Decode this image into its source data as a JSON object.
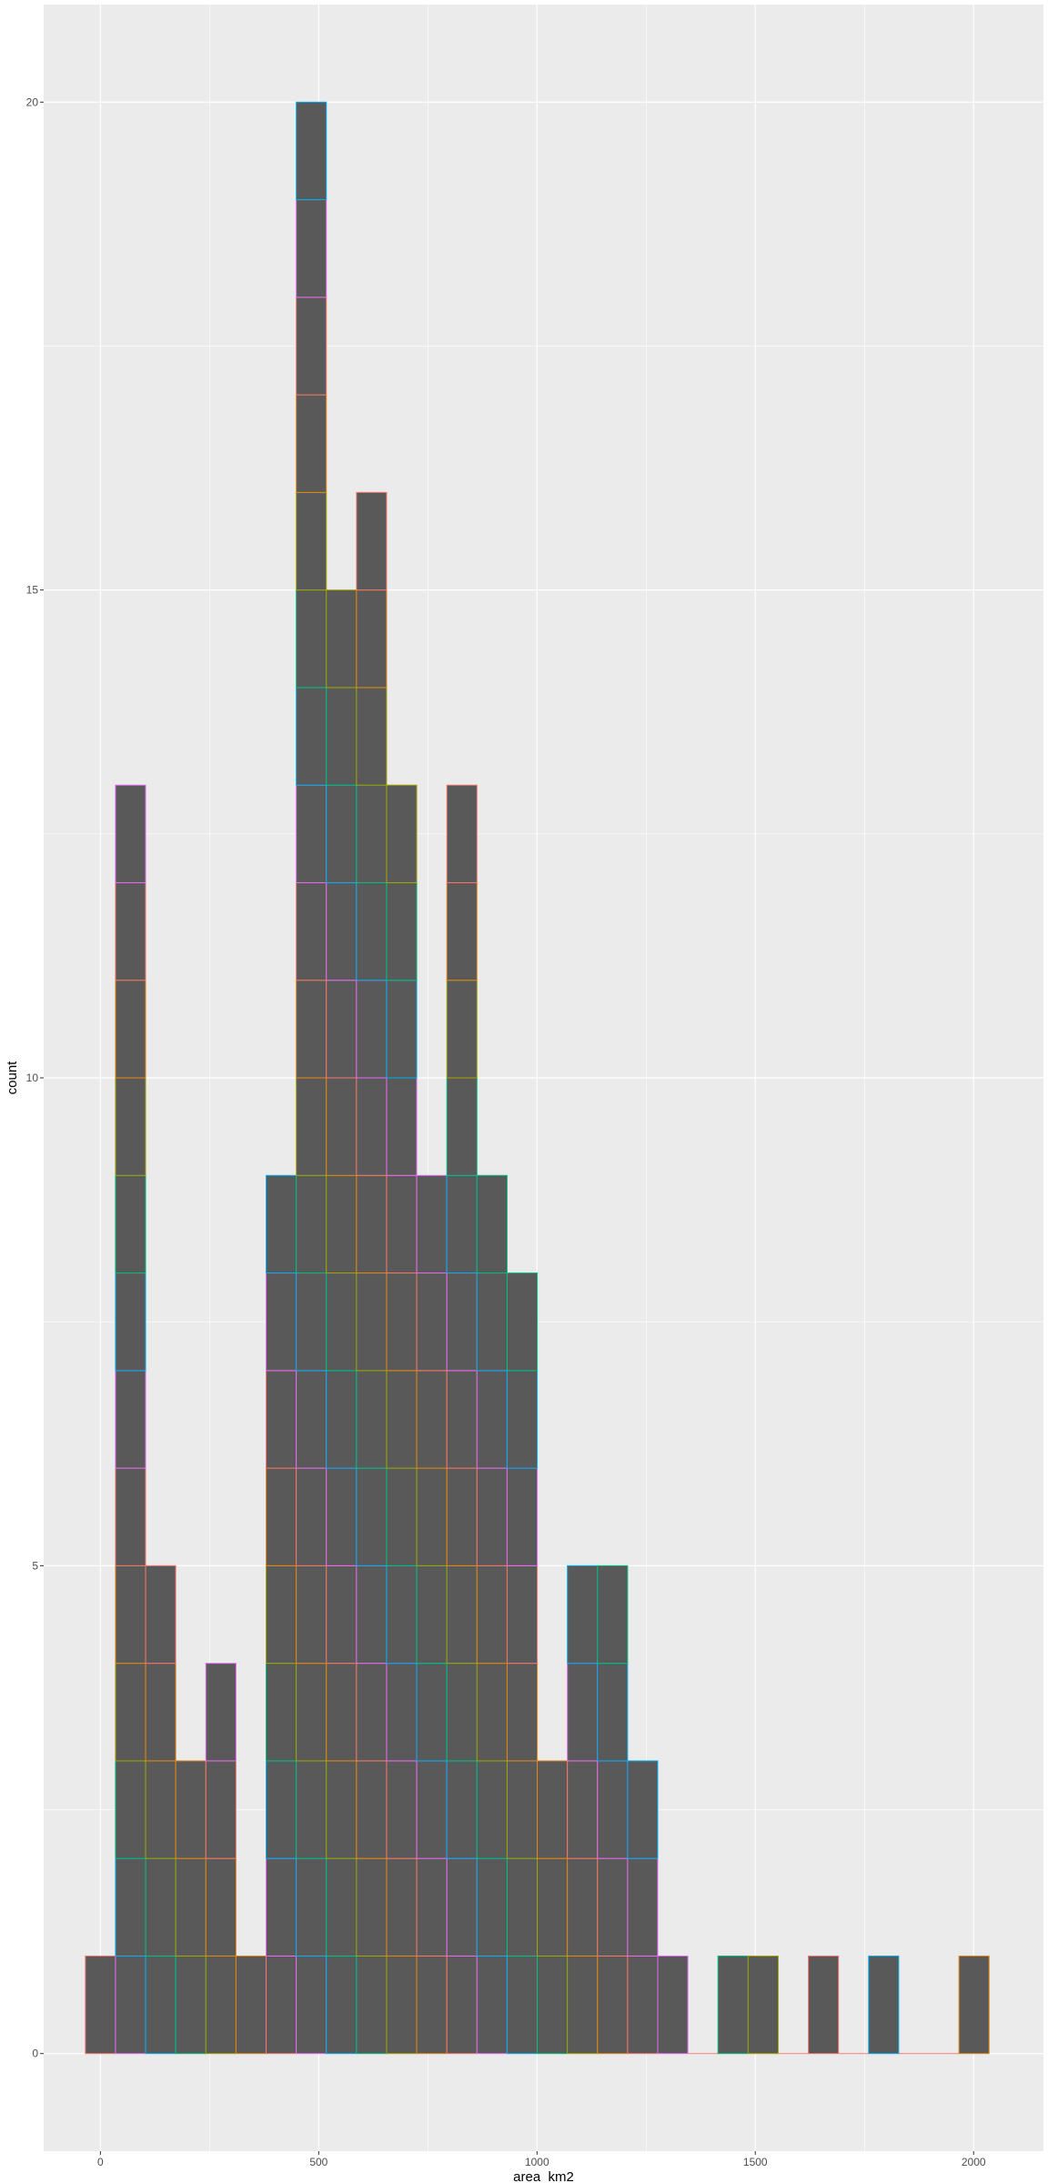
{
  "chart_data": {
    "type": "bar",
    "xlabel": "area_km2",
    "ylabel": "count",
    "xlim": [
      -130,
      2160
    ],
    "ylim": [
      -1.0,
      21.0
    ],
    "x_ticks": [
      0,
      500,
      1000,
      1500,
      2000
    ],
    "x_tick_labels": [
      "0",
      "500",
      "1000",
      "1500",
      "2000"
    ],
    "y_ticks": [
      0,
      5,
      10,
      15,
      20
    ],
    "y_tick_labels": [
      "0",
      "5",
      "10",
      "15",
      "20"
    ],
    "bin_width": 69,
    "bin_centers": [
      0,
      69,
      138,
      207,
      276,
      345,
      414,
      483,
      552,
      621,
      690,
      759,
      828,
      897,
      966,
      1035,
      1104,
      1173,
      1242,
      1311,
      1380,
      1449,
      1518,
      1587,
      1656,
      1725,
      1794,
      1863,
      1932,
      2001
    ],
    "values": [
      1,
      13,
      5,
      3,
      4,
      1,
      9,
      20,
      15,
      16,
      13,
      9,
      13,
      9,
      8,
      3,
      5,
      5,
      3,
      1,
      0,
      1,
      1,
      0,
      1,
      0,
      1,
      0,
      0,
      1
    ],
    "segment_palette": [
      "#f8766d",
      "#e76bf3",
      "#00b0f6",
      "#00bf7d",
      "#a3a500",
      "#e68613"
    ],
    "bar_fill": "#595959",
    "panel_background": "#ebebeb",
    "grid": true,
    "legend": "none"
  }
}
